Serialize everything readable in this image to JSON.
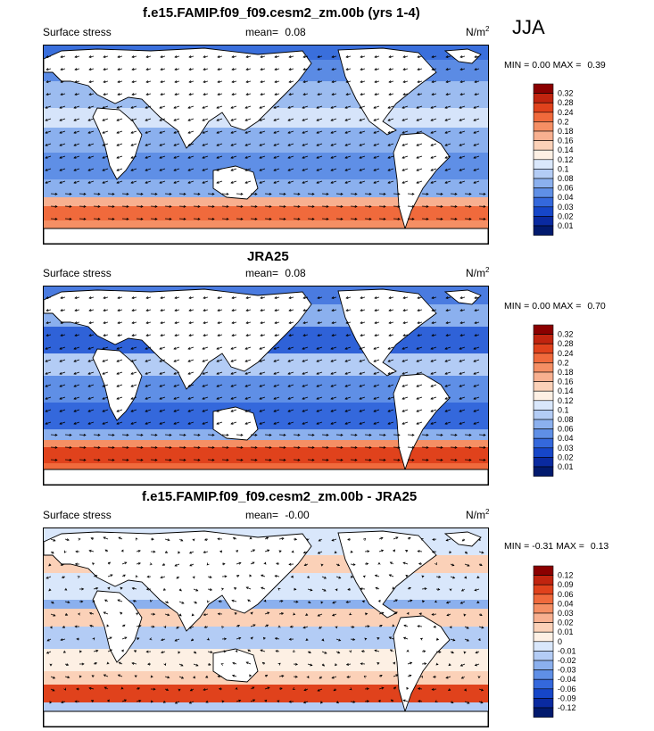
{
  "season": "JJA",
  "chart_data": [
    {
      "type": "heatmap",
      "title": "f.e15.FAMIP.f09_f09.cesm2_zm.00b (yrs 1-4)",
      "left_label": "Surface stress",
      "mean_label": "mean=",
      "mean_value": "0.08",
      "units": "N/m",
      "units_sup": "2",
      "min_label": "MIN =",
      "min_value": "0.00",
      "max_label": "MAX =",
      "max_value": "0.39",
      "colorbar_levels": [
        "0.32",
        "0.28",
        "0.24",
        "0.2",
        "0.18",
        "0.16",
        "0.14",
        "0.12",
        "0.1",
        "0.08",
        "0.06",
        "0.04",
        "0.03",
        "0.02",
        "0.01"
      ],
      "colorbar_colors": [
        "#8b0000",
        "#c1240f",
        "#e0421c",
        "#f06a3c",
        "#f58f64",
        "#f8b090",
        "#fbd1b8",
        "#fdf0e4",
        "#d9e7fb",
        "#b3ccf5",
        "#8bb0ee",
        "#5f8fe6",
        "#3468dc",
        "#1646c8",
        "#0a2aa0",
        "#021a6e"
      ]
    },
    {
      "type": "heatmap",
      "title": "JRA25",
      "left_label": "Surface stress",
      "mean_label": "mean=",
      "mean_value": "0.08",
      "units": "N/m",
      "units_sup": "2",
      "min_label": "MIN =",
      "min_value": "0.00",
      "max_label": "MAX =",
      "max_value": "0.70",
      "colorbar_levels": [
        "0.32",
        "0.28",
        "0.24",
        "0.2",
        "0.18",
        "0.16",
        "0.14",
        "0.12",
        "0.1",
        "0.08",
        "0.06",
        "0.04",
        "0.03",
        "0.02",
        "0.01"
      ],
      "colorbar_colors": [
        "#8b0000",
        "#c1240f",
        "#e0421c",
        "#f06a3c",
        "#f58f64",
        "#f8b090",
        "#fbd1b8",
        "#fdf0e4",
        "#d9e7fb",
        "#b3ccf5",
        "#8bb0ee",
        "#5f8fe6",
        "#3468dc",
        "#1646c8",
        "#0a2aa0",
        "#021a6e"
      ]
    },
    {
      "type": "heatmap",
      "title": "f.e15.FAMIP.f09_f09.cesm2_zm.00b - JRA25",
      "left_label": "Surface stress",
      "mean_label": "mean=",
      "mean_value": "-0.00",
      "units": "N/m",
      "units_sup": "2",
      "min_label": "MIN =",
      "min_value": "-0.31",
      "max_label": "MAX =",
      "max_value": "0.13",
      "colorbar_levels": [
        "0.12",
        "0.09",
        "0.06",
        "0.04",
        "0.03",
        "0.02",
        "0.01",
        "0",
        "-0.01",
        "-0.02",
        "-0.03",
        "-0.04",
        "-0.06",
        "-0.09",
        "-0.12"
      ],
      "colorbar_colors": [
        "#8b0000",
        "#c1240f",
        "#e0421c",
        "#f06a3c",
        "#f58f64",
        "#f8b090",
        "#fbd1b8",
        "#fdf0e4",
        "#d9e7fb",
        "#b3ccf5",
        "#8bb0ee",
        "#5f8fe6",
        "#3468dc",
        "#1646c8",
        "#0a2aa0",
        "#021a6e"
      ]
    }
  ]
}
